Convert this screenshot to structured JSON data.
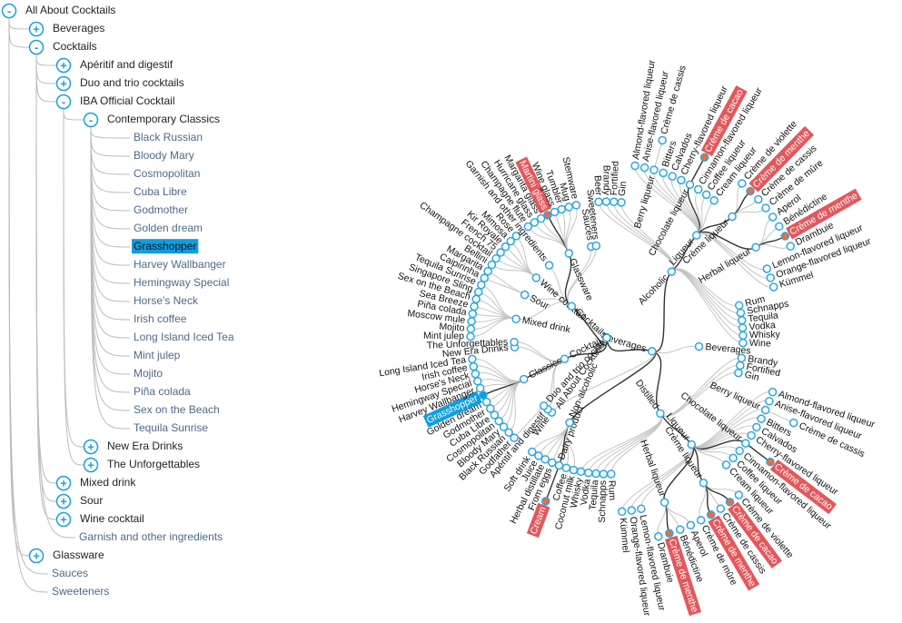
{
  "tree": {
    "items": [
      {
        "label": "All About Cocktails",
        "depth": 0,
        "toggle": "-"
      },
      {
        "label": "Beverages",
        "depth": 1,
        "toggle": "+"
      },
      {
        "label": "Cocktails",
        "depth": 1,
        "toggle": "-"
      },
      {
        "label": "Apéritif and digestif",
        "depth": 2,
        "toggle": "+"
      },
      {
        "label": "Duo and trio cocktails",
        "depth": 2,
        "toggle": "+"
      },
      {
        "label": "IBA Official Cocktail",
        "depth": 2,
        "toggle": "-"
      },
      {
        "label": "Contemporary Classics",
        "depth": 3,
        "toggle": "-"
      },
      {
        "label": "Black Russian",
        "depth": 4
      },
      {
        "label": "Bloody Mary",
        "depth": 4
      },
      {
        "label": "Cosmopolitan",
        "depth": 4
      },
      {
        "label": "Cuba Libre",
        "depth": 4
      },
      {
        "label": "Godmother",
        "depth": 4
      },
      {
        "label": "Golden dream",
        "depth": 4
      },
      {
        "label": "Grasshopper",
        "depth": 4,
        "selected": true
      },
      {
        "label": "Harvey Wallbanger",
        "depth": 4
      },
      {
        "label": "Hemingway Special",
        "depth": 4
      },
      {
        "label": "Horse's Neck",
        "depth": 4
      },
      {
        "label": "Irish coffee",
        "depth": 4
      },
      {
        "label": "Long Island Iced Tea",
        "depth": 4
      },
      {
        "label": "Mint julep",
        "depth": 4
      },
      {
        "label": "Mojito",
        "depth": 4
      },
      {
        "label": "Piña colada",
        "depth": 4
      },
      {
        "label": "Sex on the Beach",
        "depth": 4
      },
      {
        "label": "Tequila Sunrise",
        "depth": 4
      },
      {
        "label": "New Era Drinks",
        "depth": 3,
        "toggle": "+"
      },
      {
        "label": "The Unforgettables",
        "depth": 3,
        "toggle": "+"
      },
      {
        "label": "Mixed drink",
        "depth": 2,
        "toggle": "+"
      },
      {
        "label": "Sour",
        "depth": 2,
        "toggle": "+"
      },
      {
        "label": "Wine cocktail",
        "depth": 2,
        "toggle": "+"
      },
      {
        "label": "Garnish and other ingredients",
        "depth": 2
      },
      {
        "label": "Glassware",
        "depth": 1,
        "toggle": "+"
      },
      {
        "label": "Sauces",
        "depth": 1
      },
      {
        "label": "Sweeteners",
        "depth": 1
      }
    ]
  },
  "radial": {
    "label": "All About Cocktails",
    "children": [
      {
        "label": "Beverages",
        "children": [
          {
            "label": "Alcoholic",
            "children": [
              {
                "label": "Beer"
              },
              {
                "label": "Brandy"
              },
              {
                "label": "Fortified"
              },
              {
                "label": "Gin"
              },
              {
                "label": "Liqueur",
                "children": [
                  {
                    "label": "Almond-flavored liqueur"
                  },
                  {
                    "label": "Anise-flavored liqueur"
                  },
                  {
                    "label": "Berry liqueur",
                    "children": [
                      {
                        "label": "Crème de cassis"
                      }
                    ]
                  },
                  {
                    "label": "Bitters"
                  },
                  {
                    "label": "Calvados"
                  },
                  {
                    "label": "Cherry-flavored liqueur"
                  },
                  {
                    "label": "Chocolate liqueur",
                    "children": [
                      {
                        "label": "Crème de cacao",
                        "highlight": "red"
                      }
                    ]
                  },
                  {
                    "label": "Cinnamon-flavored liqueur"
                  },
                  {
                    "label": "Coffee liqueur"
                  },
                  {
                    "label": "Cream liqueur"
                  },
                  {
                    "label": "Crème liqueur",
                    "children": [
                      {
                        "label": "Crème de violette"
                      },
                      {
                        "label": "Crème de menthe",
                        "highlight": "red"
                      },
                      {
                        "label": "Crème de cassis"
                      },
                      {
                        "label": "Crème de mûre"
                      }
                    ]
                  },
                  {
                    "label": "Herbal liqueur",
                    "children": [
                      {
                        "label": "Aperol"
                      },
                      {
                        "label": "Bénédictine"
                      },
                      {
                        "label": "Crème de menthe",
                        "highlight": "red"
                      },
                      {
                        "label": "Drambuie"
                      }
                    ]
                  },
                  {
                    "label": "Lemon-flavored liqueur"
                  },
                  {
                    "label": "Orange-flavored liqueur"
                  },
                  {
                    "label": "Kümmel"
                  }
                ]
              },
              {
                "label": "Rum"
              },
              {
                "label": "Schnapps"
              },
              {
                "label": "Tequila"
              },
              {
                "label": "Vodka"
              },
              {
                "label": "Whisky"
              },
              {
                "label": "Wine"
              }
            ]
          },
          {
            "label": "Beverages"
          },
          {
            "label": "Distilled",
            "children": [
              {
                "label": "Brandy"
              },
              {
                "label": "Fortified"
              },
              {
                "label": "Gin"
              },
              {
                "label": "Liqueur",
                "children": [
                  {
                    "label": "Almond-flavored liqueur"
                  },
                  {
                    "label": "Anise-flavored liqueur"
                  },
                  {
                    "label": "Berry liqueur",
                    "children": [
                      {
                        "label": "Crème de cassis"
                      }
                    ]
                  },
                  {
                    "label": "Bitters"
                  },
                  {
                    "label": "Calvados"
                  },
                  {
                    "label": "Cherry-flavored liqueur"
                  },
                  {
                    "label": "Chocolate liqueur",
                    "children": [
                      {
                        "label": "Crème de cacao",
                        "highlight": "red"
                      }
                    ]
                  },
                  {
                    "label": "Cinnamon-flavored liqueur"
                  },
                  {
                    "label": "Coffee liqueur"
                  },
                  {
                    "label": "Cream liqueur"
                  },
                  {
                    "label": "Crème liqueur",
                    "children": [
                      {
                        "label": "Crème de violette"
                      },
                      {
                        "label": "Crème de cacao",
                        "highlight": "red"
                      },
                      {
                        "label": "Crème de cassis"
                      },
                      {
                        "label": "Crème de menthe",
                        "highlight": "red"
                      },
                      {
                        "label": "Crème de mûre"
                      }
                    ]
                  },
                  {
                    "label": "Herbal liqueur",
                    "children": [
                      {
                        "label": "Aperol"
                      },
                      {
                        "label": "Bénédictine"
                      },
                      {
                        "label": "Crème de menthe",
                        "highlight": "red"
                      },
                      {
                        "label": "Drambuie"
                      }
                    ]
                  },
                  {
                    "label": "Lemon-flavored liqueur"
                  },
                  {
                    "label": "Orange-flavored liqueur"
                  },
                  {
                    "label": "Kümmel"
                  }
                ]
              },
              {
                "label": "Rum"
              },
              {
                "label": "Schnapps"
              },
              {
                "label": "Tequila"
              },
              {
                "label": "Vodka"
              },
              {
                "label": "Whisky"
              }
            ]
          },
          {
            "label": "Non-alcoholic",
            "children": [
              {
                "label": "Coconut milk"
              },
              {
                "label": "Coffee"
              },
              {
                "label": "Dairy product",
                "children": [
                  {
                    "label": "Cream",
                    "highlight": "red"
                  }
                ]
              },
              {
                "label": "From eggs"
              },
              {
                "label": "Herbal distillate"
              },
              {
                "label": "Juice"
              },
              {
                "label": "Soft drink"
              }
            ]
          },
          {
            "label": "Wine"
          }
        ]
      },
      {
        "label": "Cocktail",
        "children": [
          {
            "label": "Apéritif and digestif"
          },
          {
            "label": "Duo and trio cocktails",
            "children": [
              {
                "label": "Godfather"
              }
            ]
          },
          {
            "label": "Classics",
            "children": [
              {
                "label": "Black Russian"
              },
              {
                "label": "Bloody Mary"
              },
              {
                "label": "Cosmopolitan"
              },
              {
                "label": "Cuba Libre"
              },
              {
                "label": "Godmother"
              },
              {
                "label": "Golden dream"
              },
              {
                "label": "Grasshopper",
                "highlight": "blue"
              },
              {
                "label": "Harvey Wallbanger"
              },
              {
                "label": "Hemingway Special"
              },
              {
                "label": "Horse's Neck"
              },
              {
                "label": "Irish coffee"
              },
              {
                "label": "Long Island Iced Tea"
              }
            ]
          },
          {
            "label": "New Era Drinks"
          },
          {
            "label": "The Unforgettables"
          }
        ]
      },
      {
        "label": "Cocktails",
        "children": [
          {
            "label": "Mixed drink",
            "children": [
              {
                "label": "Mint julep"
              },
              {
                "label": "Mojito"
              },
              {
                "label": "Moscow mule"
              },
              {
                "label": "Piña colada"
              },
              {
                "label": "Sea Breeze"
              },
              {
                "label": "Sex on the Beach"
              },
              {
                "label": "Singapore Sling"
              },
              {
                "label": "Tequila Sunrise"
              }
            ]
          },
          {
            "label": "Sour",
            "children": [
              {
                "label": "Caipirinha"
              },
              {
                "label": "Margarita"
              }
            ]
          },
          {
            "label": "Wine cocktail",
            "children": [
              {
                "label": "Bellini"
              },
              {
                "label": "Champagne cocktail"
              },
              {
                "label": "French 75"
              },
              {
                "label": "Kir Royale"
              },
              {
                "label": "Mimosa"
              },
              {
                "label": "Rose"
              }
            ]
          },
          {
            "label": "Garnish and other ingredients"
          },
          {
            "label": "Glassware",
            "children": [
              {
                "label": "Champagne flute"
              },
              {
                "label": "Hurricane glass"
              },
              {
                "label": "Margarita glass"
              },
              {
                "label": "Martini glass",
                "highlight": "red"
              },
              {
                "label": "Wine glass"
              },
              {
                "label": "Tumbler"
              },
              {
                "label": "Mug"
              },
              {
                "label": "Stemware"
              }
            ]
          },
          {
            "label": "Sauces"
          },
          {
            "label": "Sweeteners"
          }
        ]
      }
    ]
  }
}
